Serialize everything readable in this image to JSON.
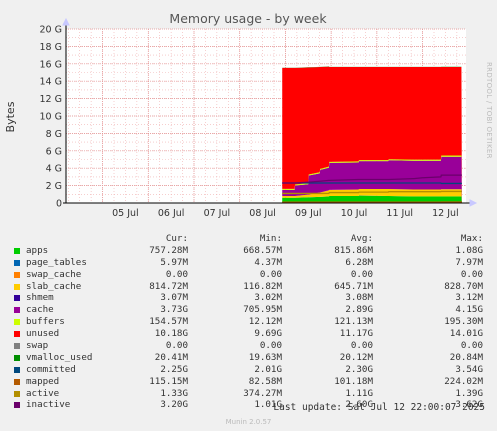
{
  "chart_data": {
    "type": "area",
    "title": "Memory usage - by week",
    "ylabel": "Bytes",
    "ylim": [
      0,
      20
    ],
    "y_ticks": [
      {
        "value": 0,
        "label": "0"
      },
      {
        "value": 2,
        "label": "2 G"
      },
      {
        "value": 4,
        "label": "4 G"
      },
      {
        "value": 6,
        "label": "6 G"
      },
      {
        "value": 8,
        "label": "8 G"
      },
      {
        "value": 10,
        "label": "10 G"
      },
      {
        "value": 12,
        "label": "12 G"
      },
      {
        "value": 14,
        "label": "14 G"
      },
      {
        "value": 16,
        "label": "16 G"
      },
      {
        "value": 18,
        "label": "18 G"
      },
      {
        "value": 20,
        "label": "20 G"
      }
    ],
    "x_range": [
      4.2,
      12.95
    ],
    "x_ticks": [
      {
        "value": 5,
        "label": "05 Jul"
      },
      {
        "value": 6,
        "label": "06 Jul"
      },
      {
        "value": 7,
        "label": "07 Jul"
      },
      {
        "value": 8,
        "label": "08 Jul"
      },
      {
        "value": 9,
        "label": "09 Jul"
      },
      {
        "value": 10,
        "label": "10 Jul"
      },
      {
        "value": 11,
        "label": "11 Jul"
      },
      {
        "value": 12,
        "label": "12 Jul"
      }
    ],
    "x": [
      8.93,
      9.2,
      9.21,
      9.5,
      9.51,
      9.75,
      9.76,
      9.95,
      9.96,
      10.6,
      10.61,
      11.25,
      11.26,
      11.8,
      11.81,
      12.0,
      12.01,
      12.4,
      12.41,
      12.85,
      12.86
    ],
    "series": [
      {
        "name": "apps",
        "color": "#00cc00",
        "values": [
          0.6,
          0.6,
          0.6,
          0.65,
          0.65,
          0.7,
          0.7,
          0.75,
          0.8,
          0.8,
          0.85,
          0.8,
          0.8,
          0.75,
          0.75,
          0.75,
          0.75,
          0.75,
          0.76,
          0.76,
          0
        ]
      },
      {
        "name": "page_tables",
        "color": "#0066b3",
        "values": [
          0.006,
          0.006,
          0.006,
          0.006,
          0.006,
          0.006,
          0.006,
          0.006,
          0.006,
          0.006,
          0.006,
          0.006,
          0.006,
          0.006,
          0.006,
          0.006,
          0.006,
          0.006,
          0.006,
          0.006,
          0
        ]
      },
      {
        "name": "swap_cache",
        "color": "#ff8000",
        "values": [
          0,
          0,
          0,
          0,
          0,
          0,
          0,
          0,
          0,
          0,
          0,
          0,
          0,
          0,
          0,
          0,
          0,
          0,
          0,
          0,
          0
        ]
      },
      {
        "name": "slab_cache",
        "color": "#ffcc00",
        "values": [
          0.2,
          0.2,
          0.2,
          0.3,
          0.3,
          0.5,
          0.5,
          0.7,
          0.7,
          0.75,
          0.75,
          0.8,
          0.8,
          0.8,
          0.8,
          0.8,
          0.8,
          0.8,
          0.81,
          0.81,
          0
        ]
      },
      {
        "name": "shmem",
        "color": "#330099",
        "values": [
          0.003,
          0.003,
          0.003,
          0.003,
          0.003,
          0.003,
          0.003,
          0.003,
          0.003,
          0.003,
          0.003,
          0.003,
          0.003,
          0.003,
          0.003,
          0.003,
          0.003,
          0.003,
          0.003,
          0.003,
          0
        ]
      },
      {
        "name": "cache",
        "color": "#990099",
        "values": [
          0.7,
          0.7,
          1.2,
          1.2,
          2.2,
          2.2,
          2.6,
          2.6,
          3.1,
          3.1,
          3.2,
          3.2,
          3.3,
          3.3,
          3.3,
          3.3,
          3.3,
          3.3,
          3.73,
          3.73,
          0
        ]
      },
      {
        "name": "buffers",
        "color": "#ccff00",
        "values": [
          0.12,
          0.12,
          0.12,
          0.12,
          0.12,
          0.12,
          0.12,
          0.12,
          0.12,
          0.12,
          0.12,
          0.12,
          0.12,
          0.12,
          0.12,
          0.12,
          0.12,
          0.12,
          0.15,
          0.15,
          0
        ]
      },
      {
        "name": "unused",
        "color": "#ff0000",
        "values": [
          13.9,
          13.9,
          13.4,
          13.3,
          12.3,
          12.1,
          11.7,
          11.5,
          10.9,
          10.85,
          10.7,
          10.7,
          10.6,
          10.65,
          10.65,
          10.65,
          10.65,
          10.65,
          10.18,
          10.18,
          0
        ]
      },
      {
        "name": "swap",
        "color": "#808080",
        "values": [
          0,
          0,
          0,
          0,
          0,
          0,
          0,
          0,
          0,
          0,
          0,
          0,
          0,
          0,
          0,
          0,
          0,
          0,
          0,
          0,
          0
        ]
      },
      {
        "name": "vmalloc_used",
        "color": "#008f00",
        "values": [
          0.02,
          0.02,
          0.02,
          0.02,
          0.02,
          0.02,
          0.02,
          0.02,
          0.02,
          0.02,
          0.02,
          0.02,
          0.02,
          0.02,
          0.02,
          0.02,
          0.02,
          0.02,
          0.02,
          0.02,
          0
        ]
      },
      {
        "name": "committed",
        "color": "#00487d",
        "values": [
          2.3,
          2.3,
          2.3,
          2.3,
          2.3,
          2.3,
          2.3,
          2.3,
          2.3,
          2.3,
          2.3,
          2.3,
          2.3,
          2.3,
          2.3,
          2.3,
          2.3,
          2.3,
          2.25,
          2.25,
          2.25
        ]
      },
      {
        "name": "mapped",
        "color": "#b35a00",
        "values": [
          0.1,
          0.1,
          0.1,
          0.1,
          0.1,
          0.1,
          0.1,
          0.1,
          0.1,
          0.1,
          0.1,
          0.1,
          0.1,
          0.1,
          0.1,
          0.1,
          0.1,
          0.1,
          0.115,
          0.115,
          0.115
        ]
      },
      {
        "name": "active",
        "color": "#b38f00",
        "values": [
          1.1,
          1.1,
          1.1,
          1.1,
          1.1,
          1.1,
          1.1,
          1.1,
          1.2,
          1.2,
          1.25,
          1.25,
          1.3,
          1.3,
          1.3,
          1.3,
          1.3,
          1.3,
          1.33,
          1.33,
          1.33
        ]
      },
      {
        "name": "inactive",
        "color": "#6b006b",
        "values": [
          2.3,
          2.3,
          2.3,
          2.4,
          2.4,
          2.5,
          2.5,
          2.6,
          2.6,
          2.7,
          2.7,
          2.7,
          2.7,
          2.8,
          2.8,
          2.9,
          2.9,
          3.0,
          3.2,
          3.2,
          3.2
        ]
      }
    ],
    "stacked_series": [
      "apps",
      "page_tables",
      "swap_cache",
      "slab_cache",
      "shmem",
      "cache",
      "buffers",
      "unused",
      "swap",
      "vmalloc_used"
    ],
    "line_series": [
      "committed",
      "mapped",
      "active",
      "inactive"
    ],
    "grid": true
  },
  "sidebar_text": "RRDTOOL / TOBI OETIKER",
  "legend": {
    "headers": {
      "cur": "Cur:",
      "min": "Min:",
      "avg": "Avg:",
      "max": "Max:"
    },
    "rows": [
      {
        "name": "apps",
        "color": "#00cc00",
        "cur": "757.28M",
        "min": "668.57M",
        "avg": "815.86M",
        "max": "1.08G"
      },
      {
        "name": "page_tables",
        "color": "#0066b3",
        "cur": "5.97M",
        "min": "4.37M",
        "avg": "6.28M",
        "max": "7.97M"
      },
      {
        "name": "swap_cache",
        "color": "#ff8000",
        "cur": "0.00",
        "min": "0.00",
        "avg": "0.00",
        "max": "0.00"
      },
      {
        "name": "slab_cache",
        "color": "#ffcc00",
        "cur": "814.72M",
        "min": "116.82M",
        "avg": "645.71M",
        "max": "828.70M"
      },
      {
        "name": "shmem",
        "color": "#330099",
        "cur": "3.07M",
        "min": "3.02M",
        "avg": "3.08M",
        "max": "3.12M"
      },
      {
        "name": "cache",
        "color": "#990099",
        "cur": "3.73G",
        "min": "705.95M",
        "avg": "2.89G",
        "max": "4.15G"
      },
      {
        "name": "buffers",
        "color": "#ccff00",
        "cur": "154.57M",
        "min": "12.12M",
        "avg": "121.13M",
        "max": "195.30M"
      },
      {
        "name": "unused",
        "color": "#ff0000",
        "cur": "10.18G",
        "min": "9.69G",
        "avg": "11.17G",
        "max": "14.01G"
      },
      {
        "name": "swap",
        "color": "#808080",
        "cur": "0.00",
        "min": "0.00",
        "avg": "0.00",
        "max": "0.00"
      },
      {
        "name": "vmalloc_used",
        "color": "#008f00",
        "cur": "20.41M",
        "min": "19.63M",
        "avg": "20.12M",
        "max": "20.84M"
      },
      {
        "name": "committed",
        "color": "#00487d",
        "cur": "2.25G",
        "min": "2.01G",
        "avg": "2.30G",
        "max": "3.54G"
      },
      {
        "name": "mapped",
        "color": "#b35a00",
        "cur": "115.15M",
        "min": "82.58M",
        "avg": "101.18M",
        "max": "224.02M"
      },
      {
        "name": "active",
        "color": "#b38f00",
        "cur": "1.33G",
        "min": "374.27M",
        "avg": "1.11G",
        "max": "1.39G"
      },
      {
        "name": "inactive",
        "color": "#6b006b",
        "cur": "3.20G",
        "min": "1.01G",
        "avg": "2.60G",
        "max": "3.62G"
      }
    ]
  },
  "last_update": "Last update: Sat Jul 12 22:00:07 2025",
  "footer": "Munin 2.0.57"
}
